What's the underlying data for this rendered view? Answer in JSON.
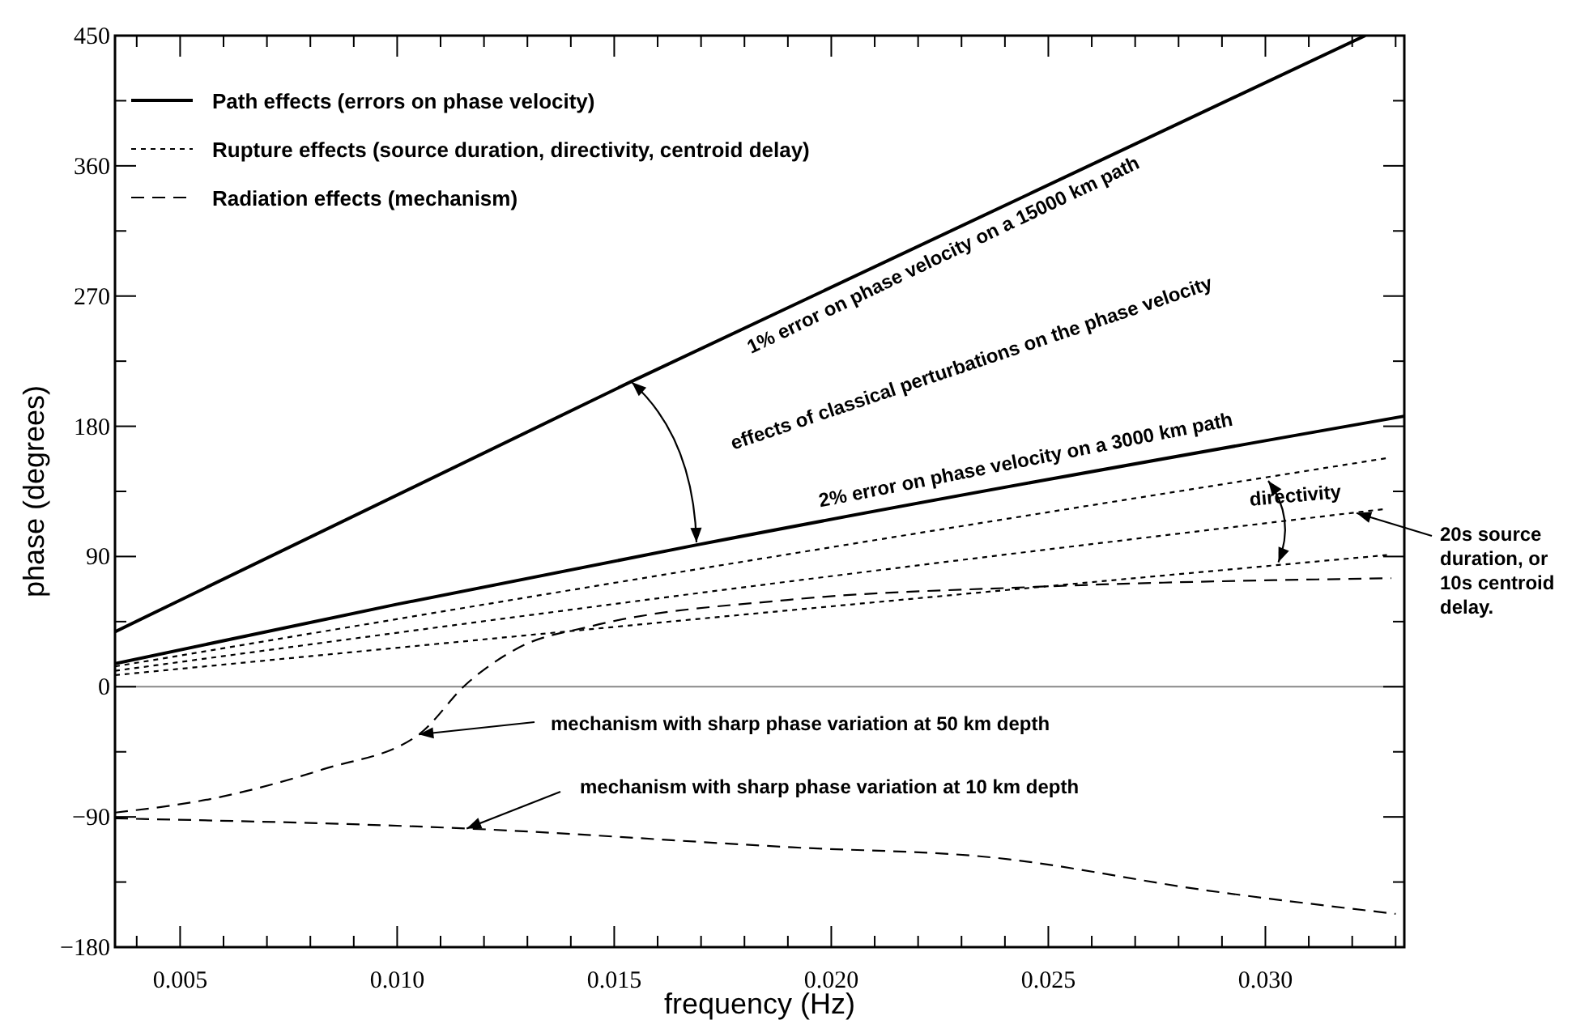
{
  "chart_data": {
    "type": "line",
    "xlabel": "frequency (Hz)",
    "ylabel": "phase (degrees)",
    "xlim": [
      0.0035,
      0.0332
    ],
    "ylim": [
      -180,
      450
    ],
    "xticks": [
      {
        "value": 0.004,
        "label": null
      },
      {
        "value": 0.005,
        "label": "0.005"
      },
      {
        "value": 0.006,
        "label": null
      },
      {
        "value": 0.007,
        "label": null
      },
      {
        "value": 0.008,
        "label": null
      },
      {
        "value": 0.009,
        "label": null
      },
      {
        "value": 0.01,
        "label": "0.010"
      },
      {
        "value": 0.011,
        "label": null
      },
      {
        "value": 0.012,
        "label": null
      },
      {
        "value": 0.013,
        "label": null
      },
      {
        "value": 0.014,
        "label": null
      },
      {
        "value": 0.015,
        "label": "0.015"
      },
      {
        "value": 0.016,
        "label": null
      },
      {
        "value": 0.017,
        "label": null
      },
      {
        "value": 0.018,
        "label": null
      },
      {
        "value": 0.019,
        "label": null
      },
      {
        "value": 0.02,
        "label": "0.020"
      },
      {
        "value": 0.021,
        "label": null
      },
      {
        "value": 0.022,
        "label": null
      },
      {
        "value": 0.023,
        "label": null
      },
      {
        "value": 0.024,
        "label": null
      },
      {
        "value": 0.025,
        "label": "0.025"
      },
      {
        "value": 0.026,
        "label": null
      },
      {
        "value": 0.027,
        "label": null
      },
      {
        "value": 0.028,
        "label": null
      },
      {
        "value": 0.029,
        "label": null
      },
      {
        "value": 0.03,
        "label": "0.030"
      },
      {
        "value": 0.031,
        "label": null
      },
      {
        "value": 0.032,
        "label": null
      },
      {
        "value": 0.033,
        "label": null
      }
    ],
    "yticks": [
      -180,
      {
        "value": -135,
        "label": null
      },
      -90,
      {
        "value": -45,
        "label": null
      },
      0,
      {
        "value": 45,
        "label": null
      },
      90,
      {
        "value": 135,
        "label": null
      },
      180,
      {
        "value": 225,
        "label": null
      },
      270,
      {
        "value": 315,
        "label": null
      },
      360,
      {
        "value": 405,
        "label": null
      },
      450
    ],
    "legend": "top left",
    "grid": false,
    "ref_lines": [
      {
        "axis": "y",
        "value": 0,
        "color": "#888888"
      }
    ],
    "series": [
      {
        "name": "Path effects (errors on phase velocity)",
        "color": "#000000",
        "line_style": "solid",
        "x": [
          0.0035,
          0.0154,
          0.0323
        ],
        "values": [
          38,
          211,
          450
        ]
      },
      {
        "color": "#000000",
        "line_style": "solid",
        "x": [
          0.0035,
          0.01,
          0.0169,
          0.0332
        ],
        "values": [
          16,
          57,
          98,
          187
        ]
      },
      {
        "name": "Rupture effects (source duration, directivity, centroid delay)",
        "color": "#000000",
        "line_style": "dotted",
        "x": [
          0.0035,
          0.0191,
          0.0328
        ],
        "values": [
          14,
          92,
          158
        ]
      },
      {
        "color": "#000000",
        "line_style": "dotted",
        "x": [
          0.0035,
          0.0191,
          0.0328
        ],
        "values": [
          11,
          73,
          123
        ]
      },
      {
        "color": "#000000",
        "line_style": "dotted",
        "x": [
          0.0035,
          0.0191,
          0.0328
        ],
        "values": [
          8,
          53,
          91
        ]
      },
      {
        "name": "Radiation effects (mechanism)",
        "color": "#000000",
        "line_style": "dashed",
        "x": [
          0.0035,
          0.0058,
          0.0083,
          0.0105,
          0.0116,
          0.0128,
          0.0145,
          0.019,
          0.0247,
          0.0329
        ],
        "values": [
          -87,
          -77,
          -57,
          -33,
          2,
          27,
          42,
          60,
          69,
          75
        ]
      },
      {
        "color": "#000000",
        "line_style": "dashed",
        "x": [
          0.0035,
          0.0116,
          0.0191,
          0.0237,
          0.0287,
          0.033
        ],
        "values": [
          -91,
          -98,
          -111,
          -118,
          -141,
          -157
        ]
      }
    ],
    "annotations": [
      "1% error on phase velocity on a 15000 km path",
      "effects of classical perturbations on the phase velocity",
      "2% error on phase velocity on a 3000 km path",
      {
        "text": "directivity",
        "x": 0.0303,
        "y": 86
      },
      {
        "text": "20s source duration, or 10s centroid delay.",
        "x": 0.0321,
        "y": 120
      },
      {
        "text": "mechanism with sharp phase variation at 50 km depth",
        "x": 0.0105,
        "y": -33
      },
      {
        "text": "mechanism with sharp phase variation at 10 km depth",
        "x": 0.0116,
        "y": -98
      }
    ]
  }
}
